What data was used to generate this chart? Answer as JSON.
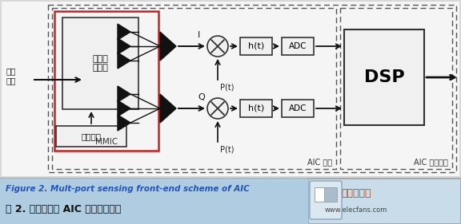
{
  "bg_color": "#e8e8e8",
  "diagram_bg": "#ffffff",
  "caption_bg": "#b0cce0",
  "caption_text_en": "Figure 2. Mult-port sensing front-end scheme of AIC",
  "caption_text_cn": "图 2. 多端口传感 AIC 前端结构框图",
  "caption_color_en": "#2255bb",
  "caption_color_cn": "#111111",
  "website": "www.elecfans.com",
  "label_rf_input": "射频\n输入",
  "label_six_port": "六端口\n结前端",
  "label_mmic": "MMIC",
  "label_ref_wave": "参考载波",
  "label_I": "I",
  "label_Q": "Q",
  "label_Pt": "P(t)",
  "label_ht": "h(t)",
  "label_ADC": "ADC",
  "label_DSP": "DSP",
  "label_AIC_front": "AIC 前端",
  "label_AIC_demod": "AIC 信息解调",
  "label_elecfans": "电子发烧友",
  "colors": {
    "box_edge": "#333333",
    "red_box": "#cc2020",
    "arrow": "#111111",
    "dashed": "#555555",
    "fill_white": "#ffffff",
    "fill_light": "#f2f2f2",
    "logo_orange": "#cc4400"
  }
}
